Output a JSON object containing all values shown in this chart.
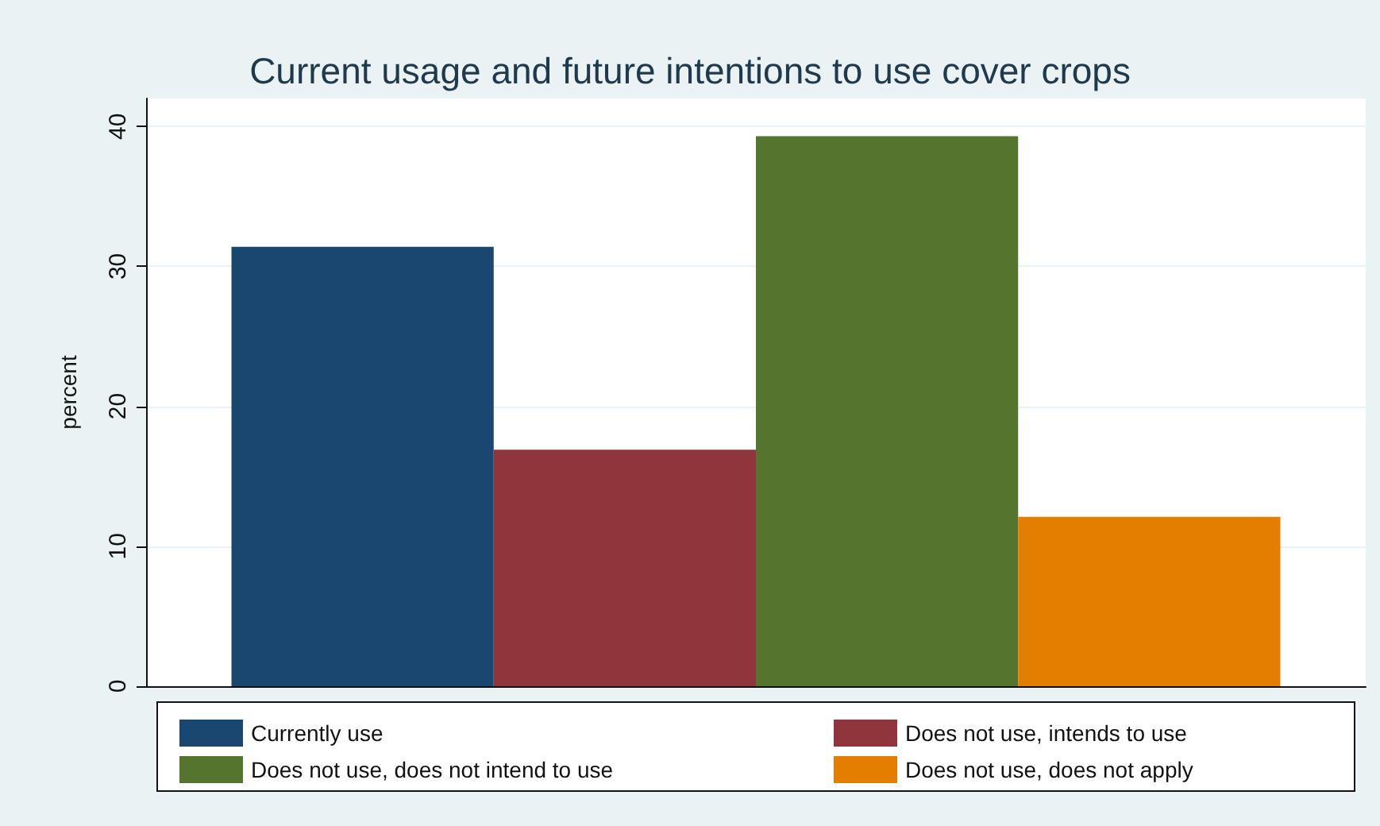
{
  "chart_data": {
    "type": "bar",
    "title": "Current usage and future intentions to use cover crops",
    "ylabel": "percent",
    "categories": [
      null
    ],
    "series": [
      {
        "name": "Currently use",
        "color": "#1a476f",
        "values": [
          31.4
        ]
      },
      {
        "name": "Does not use, intends to use",
        "color": "#90353b",
        "values": [
          16.9
        ]
      },
      {
        "name": "Does not use, does not intend to use",
        "color": "#55752f",
        "values": [
          39.3
        ]
      },
      {
        "name": "Does not use, does not apply",
        "color": "#e37e00",
        "values": [
          12.1
        ]
      }
    ],
    "ylim": [
      0,
      42
    ],
    "yticks": [
      0,
      10,
      20,
      30,
      40
    ],
    "grid": "y",
    "legend": "bottom"
  }
}
